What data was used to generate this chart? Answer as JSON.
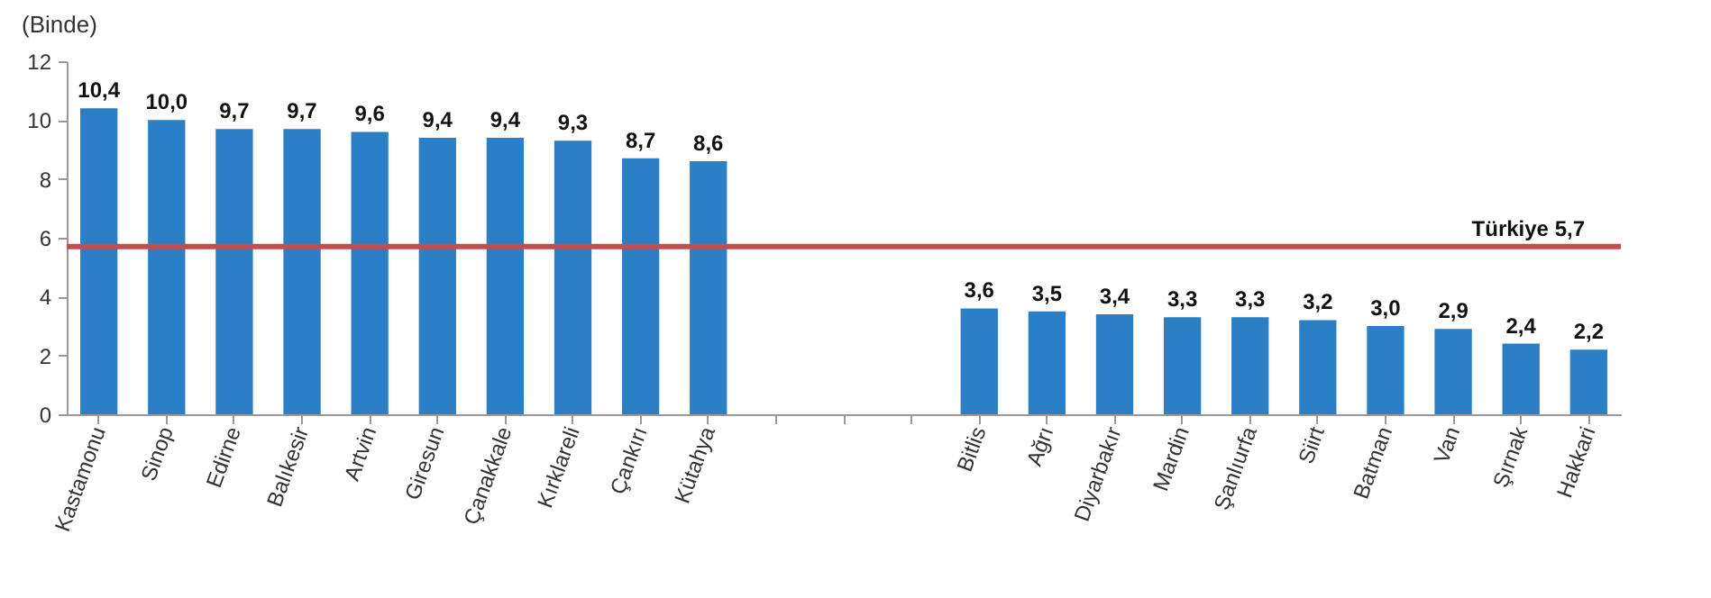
{
  "chart_data": {
    "type": "bar",
    "ylabel": "(Binde)",
    "categories": [
      "Kastamonu",
      "Sinop",
      "Edirne",
      "Balıkesir",
      "Artvin",
      "Giresun",
      "Çanakkale",
      "Kırklareli",
      "Çankırı",
      "Kütahya",
      null,
      null,
      null,
      "Bitlis",
      "Ağrı",
      "Diyarbakır",
      "Mardin",
      "Şanlıurfa",
      "Siirt",
      "Batman",
      "Van",
      "Şırnak",
      "Hakkari"
    ],
    "values": [
      10.4,
      10.0,
      9.7,
      9.7,
      9.6,
      9.4,
      9.4,
      9.3,
      8.7,
      8.6,
      null,
      null,
      null,
      3.6,
      3.5,
      3.4,
      3.3,
      3.3,
      3.2,
      3.0,
      2.9,
      2.4,
      2.2
    ],
    "value_labels": [
      "10,4",
      "10,0",
      "9,7",
      "9,7",
      "9,6",
      "9,4",
      "9,4",
      "9,3",
      "8,7",
      "8,6",
      null,
      null,
      null,
      "3,6",
      "3,5",
      "3,4",
      "3,3",
      "3,3",
      "3,2",
      "3,0",
      "2,9",
      "2,4",
      "2,2"
    ],
    "color": "#2a7fc5",
    "ylim": [
      0,
      12
    ],
    "yticks": [
      0,
      2,
      4,
      6,
      8,
      10,
      12
    ],
    "grid": false,
    "ref_lines": [
      {
        "axis": "y",
        "value": 5.7,
        "label": "Türkiye  5,7",
        "color": "#c0504d"
      }
    ]
  }
}
